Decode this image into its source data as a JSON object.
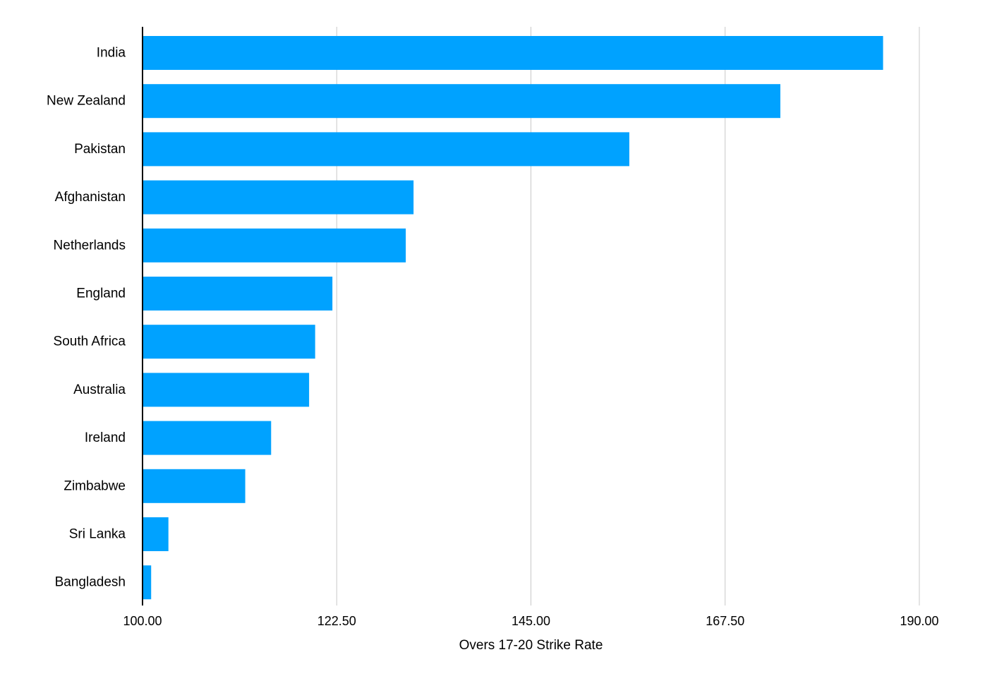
{
  "chart_data": {
    "type": "bar",
    "orientation": "horizontal",
    "categories": [
      "India",
      "New Zealand",
      "Pakistan",
      "Afghanistan",
      "Netherlands",
      "England",
      "South Africa",
      "Australia",
      "Ireland",
      "Zimbabwe",
      "Sri Lanka",
      "Bangladesh"
    ],
    "values": [
      185.8,
      173.9,
      156.4,
      131.4,
      130.5,
      122.0,
      120.0,
      119.3,
      114.9,
      111.9,
      103.0,
      101.0
    ],
    "xlabel": "Overs 17-20 Strike Rate",
    "ylabel": "",
    "xlim": [
      100,
      190
    ],
    "xticks": [
      "100.00",
      "122.50",
      "145.00",
      "167.50",
      "190.00"
    ],
    "grid": true,
    "bar_color": "#00a2ff"
  }
}
